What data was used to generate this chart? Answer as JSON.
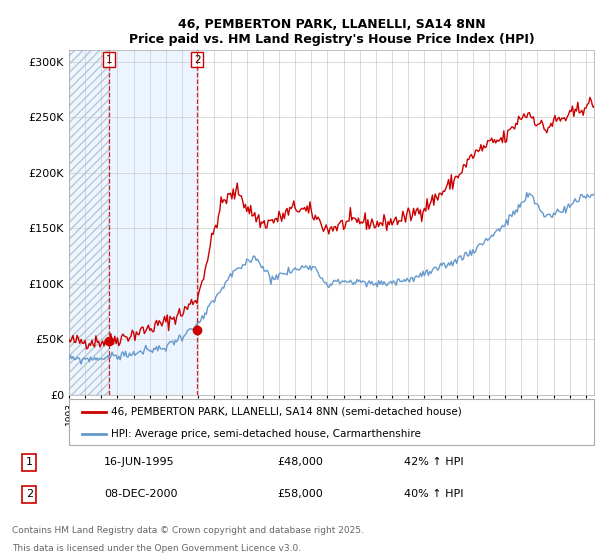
{
  "title": "46, PEMBERTON PARK, LLANELLI, SA14 8NN",
  "subtitle": "Price paid vs. HM Land Registry's House Price Index (HPI)",
  "ylim": [
    0,
    310000
  ],
  "yticks": [
    0,
    50000,
    100000,
    150000,
    200000,
    250000,
    300000
  ],
  "ytick_labels": [
    "£0",
    "£50K",
    "£100K",
    "£150K",
    "£200K",
    "£250K",
    "£300K"
  ],
  "sale1_date": 1995.46,
  "sale1_price": 48000,
  "sale2_date": 2000.93,
  "sale2_price": 58000,
  "legend1": "46, PEMBERTON PARK, LLANELLI, SA14 8NN (semi-detached house)",
  "legend2": "HPI: Average price, semi-detached house, Carmarthenshire",
  "footer1": "Contains HM Land Registry data © Crown copyright and database right 2025.",
  "footer2": "This data is licensed under the Open Government Licence v3.0.",
  "table_row1": [
    "1",
    "16-JUN-1995",
    "£48,000",
    "42% ↑ HPI"
  ],
  "table_row2": [
    "2",
    "08-DEC-2000",
    "£58,000",
    "40% ↑ HPI"
  ],
  "xmin": 1993.0,
  "xmax": 2025.5,
  "hatch_end": 1995.46,
  "blue_shade_end": 2000.93,
  "red_line_color": "#cc0000",
  "blue_line_color": "#6699cc",
  "hatch_bg_color": "#ddeeff",
  "hatch_edge_color": "#aabbcc"
}
